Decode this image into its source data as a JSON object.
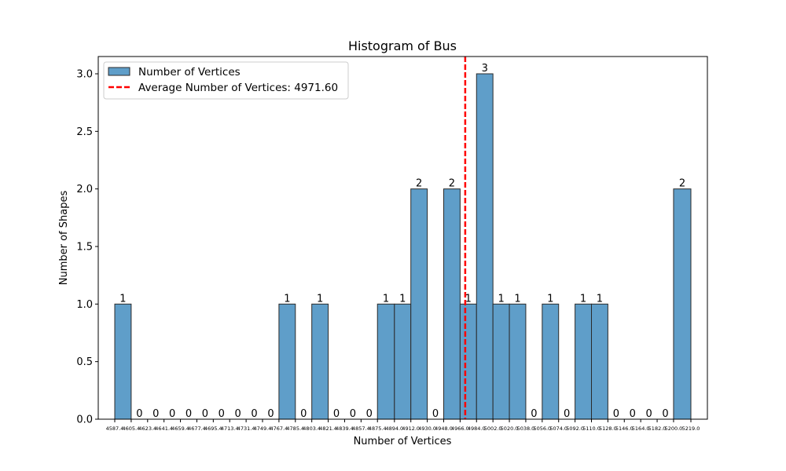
{
  "chart_data": {
    "type": "bar",
    "title": "Histogram of Bus",
    "xlabel": "Number of Vertices",
    "ylabel": "Number of Shapes",
    "ylim": [
      0,
      3.15
    ],
    "xlim": [
      4569.3,
      5237.1
    ],
    "yticks": [
      0.0,
      0.5,
      1.0,
      1.5,
      2.0,
      2.5,
      3.0
    ],
    "ytick_labels": [
      "0.0",
      "0.5",
      "1.0",
      "1.5",
      "2.0",
      "2.5",
      "3.0"
    ],
    "bin_edges": [
      4587.4,
      4605.4,
      4623.4,
      4641.4,
      4659.4,
      4677.4,
      4695.4,
      4713.4,
      4731.4,
      4749.4,
      4767.4,
      4785.4,
      4803.4,
      4821.4,
      4839.4,
      4857.4,
      4875.4,
      4894.0,
      4912.0,
      4930.0,
      4948.0,
      4966.0,
      4984.0,
      5002.0,
      5020.0,
      5038.0,
      5056.0,
      5074.0,
      5092.0,
      5110.0,
      5128.0,
      5146.0,
      5164.0,
      5182.0,
      5200.0,
      5219.0
    ],
    "bin_edge_labels": [
      "4587.4",
      "4605.4",
      "4623.4",
      "4641.4",
      "4659.4",
      "4677.4",
      "4695.4",
      "4713.4",
      "4731.4",
      "4749.4",
      "4767.4",
      "4785.4",
      "4803.4",
      "4821.4",
      "4839.4",
      "4857.4",
      "4875.4",
      "4894.0",
      "4912.0",
      "4930.0",
      "4948.0",
      "4966.0",
      "4984.0",
      "5002.0",
      "5020.0",
      "5038.0",
      "5056.0",
      "5074.0",
      "5092.0",
      "5110.0",
      "5128.0",
      "5146.0",
      "5164.0",
      "5182.0",
      "5200.0",
      "5219.0"
    ],
    "series": [
      {
        "name": "Number of Vertices",
        "values": [
          1,
          0,
          0,
          0,
          0,
          0,
          0,
          0,
          0,
          0,
          1,
          0,
          1,
          0,
          0,
          0,
          1,
          1,
          2,
          0,
          2,
          1,
          3,
          1,
          1,
          0,
          1,
          0,
          1,
          1,
          0,
          0,
          0,
          0,
          2
        ]
      }
    ],
    "reference_line": {
      "name": "Average Number of Vertices: 4971.60",
      "value": 4971.6,
      "style": "dashed",
      "color": "#ff0000"
    },
    "bar_color": "#5f9ec9",
    "bar_edge_color": "#2b2b2b",
    "legend_position": "upper-left",
    "grid": false
  }
}
